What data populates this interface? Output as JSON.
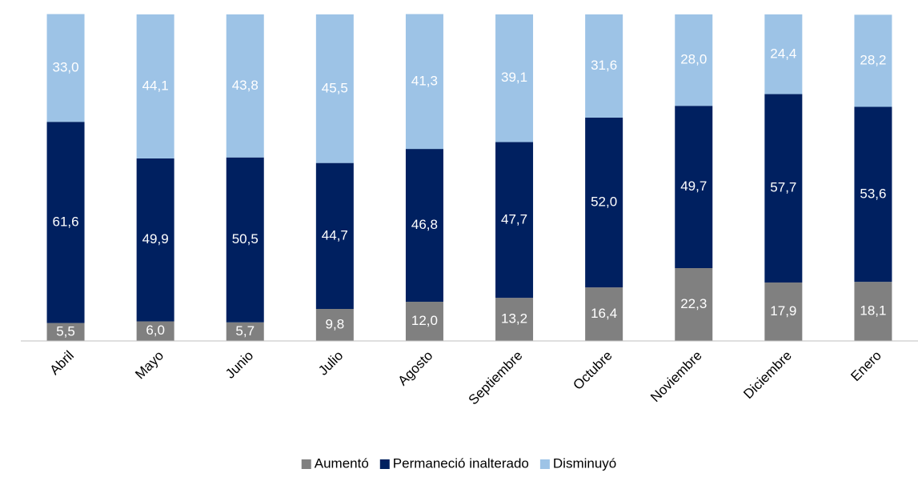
{
  "chart_data": {
    "type": "stacked_bar",
    "categories": [
      "Abril",
      "Mayo",
      "Junio",
      "Julio",
      "Agosto",
      "Septiembre",
      "Octubre",
      "Noviembre",
      "Diciembre",
      "Enero"
    ],
    "series": [
      {
        "name": "Aumentó",
        "color": "#808080",
        "values": [
          5.5,
          6.0,
          5.7,
          9.8,
          12.0,
          13.2,
          16.4,
          22.3,
          17.9,
          18.1
        ],
        "value_labels": [
          "5,5",
          "6,0",
          "5,7",
          "9,8",
          "12,0",
          "13,2",
          "16,4",
          "22,3",
          "17,9",
          "18,1"
        ]
      },
      {
        "name": "Permaneció inalterado",
        "color": "#002060",
        "values": [
          61.6,
          49.9,
          50.5,
          44.7,
          46.8,
          47.7,
          52.0,
          49.7,
          57.7,
          53.6
        ],
        "value_labels": [
          "61,6",
          "49,9",
          "50,5",
          "44,7",
          "46,8",
          "47,7",
          "52,0",
          "49,7",
          "57,7",
          "53,6"
        ]
      },
      {
        "name": "Disminuyó",
        "color": "#9dc3e6",
        "values": [
          33.0,
          44.1,
          43.8,
          45.5,
          41.3,
          39.1,
          31.6,
          28.0,
          24.4,
          28.2
        ],
        "value_labels": [
          "33,0",
          "44,1",
          "43,8",
          "45,5",
          "41,3",
          "39,1",
          "31,6",
          "28,0",
          "24,4",
          "28,2"
        ]
      }
    ],
    "ylim": [
      0,
      100
    ],
    "legend": "bottom"
  }
}
